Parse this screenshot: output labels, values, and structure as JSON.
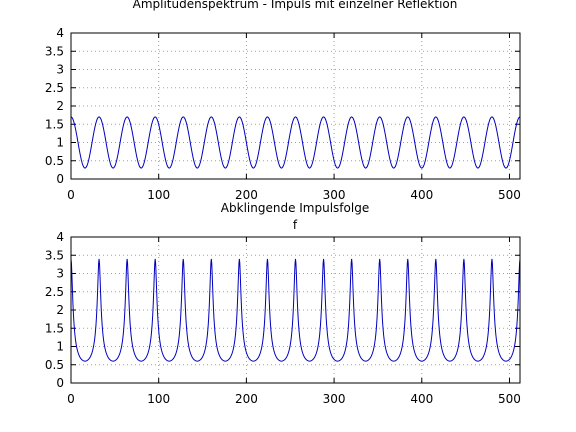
{
  "chart_data": [
    {
      "type": "line",
      "title": "Amplitudenspektrum - Impuls mit einzelner Reflektion",
      "xlabel": "",
      "ylabel": "",
      "xlim": [
        0,
        512
      ],
      "ylim": [
        0,
        4
      ],
      "xticks": [
        "0",
        "100",
        "200",
        "300",
        "400",
        "500"
      ],
      "yticks": [
        "0",
        "0.5",
        "1",
        "1.5",
        "2",
        "2.5",
        "3",
        "3.5",
        "4"
      ],
      "grid": true,
      "series": [
        {
          "color": "#0000c0",
          "shape": "periodic",
          "period": 32,
          "peak_offset": 0,
          "min": 0.3,
          "max": 1.7
        }
      ]
    },
    {
      "type": "line",
      "title": "Abklingende Impulsfolge",
      "xlabel": "f",
      "ylabel": "",
      "xlim": [
        0,
        512
      ],
      "ylim": [
        0,
        4
      ],
      "xticks": [
        "0",
        "100",
        "200",
        "300",
        "400",
        "500"
      ],
      "yticks": [
        "0",
        "0.5",
        "1",
        "1.5",
        "2",
        "2.5",
        "3",
        "3.5",
        "4"
      ],
      "grid": true,
      "series": [
        {
          "color": "#0000c0",
          "shape": "periodic-peak",
          "period": 32,
          "peak_offset": 0,
          "min": 0.6,
          "max": 3.4
        }
      ]
    }
  ]
}
